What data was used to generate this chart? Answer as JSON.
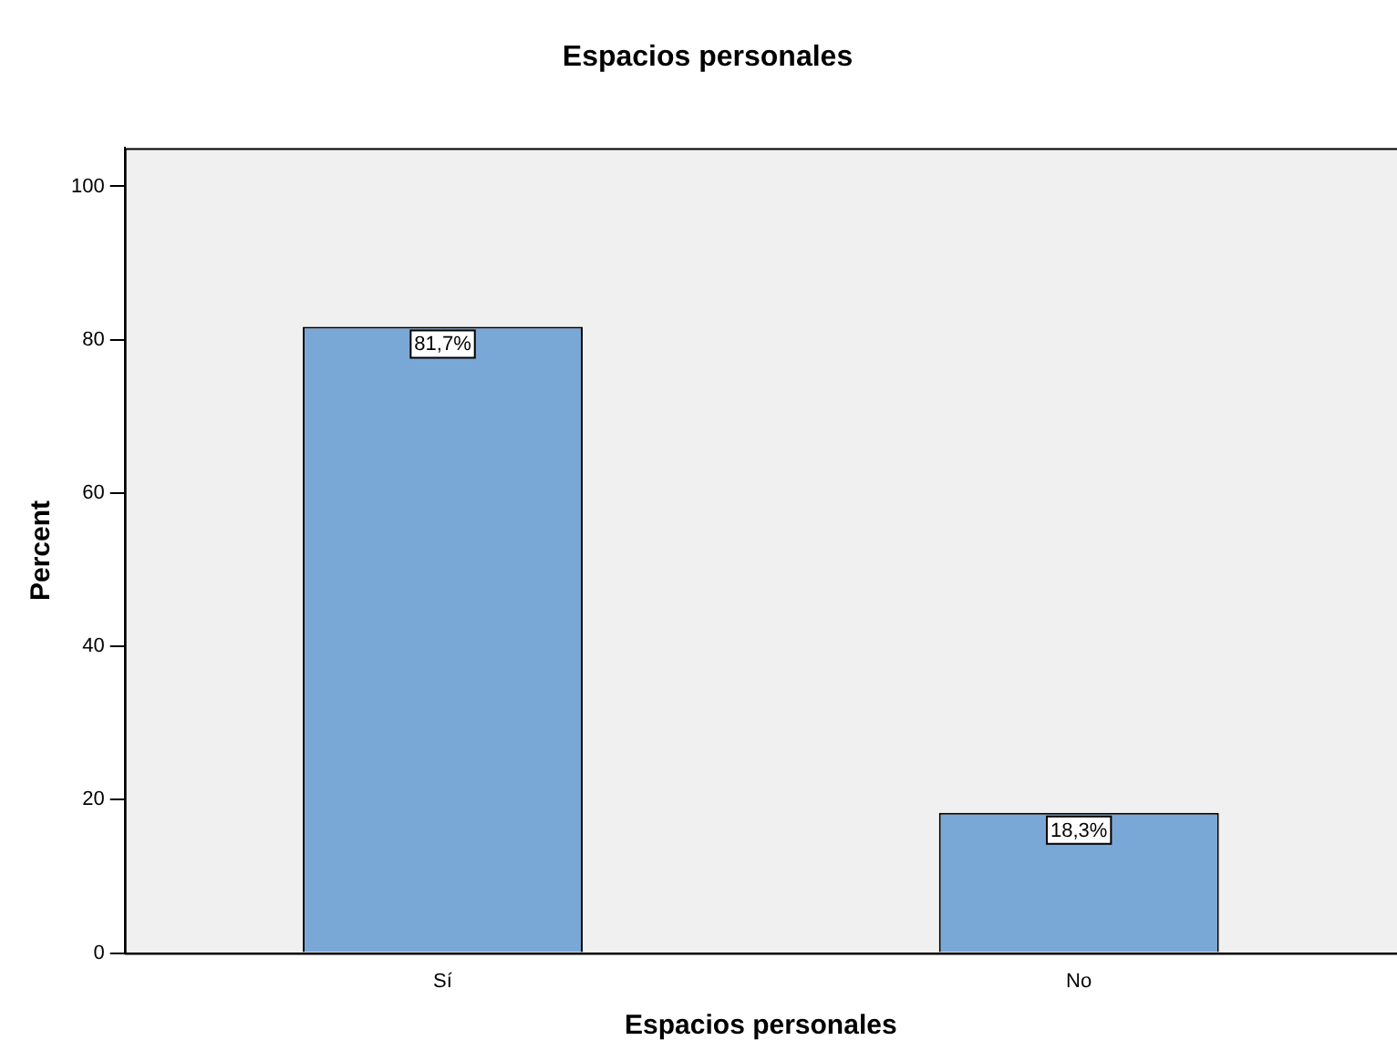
{
  "chart_data": {
    "type": "bar",
    "title": "Espacios personales",
    "xlabel": "Espacios personales",
    "ylabel": "Percent",
    "categories": [
      "Sí",
      "No"
    ],
    "values": [
      81.7,
      18.3
    ],
    "value_labels": [
      "81,7%",
      "18,3%"
    ],
    "color": "#7aa8d6",
    "ylim": [
      0,
      105
    ],
    "yticks": [
      0,
      20,
      40,
      60,
      80,
      100
    ],
    "grid": false,
    "legend": false
  }
}
